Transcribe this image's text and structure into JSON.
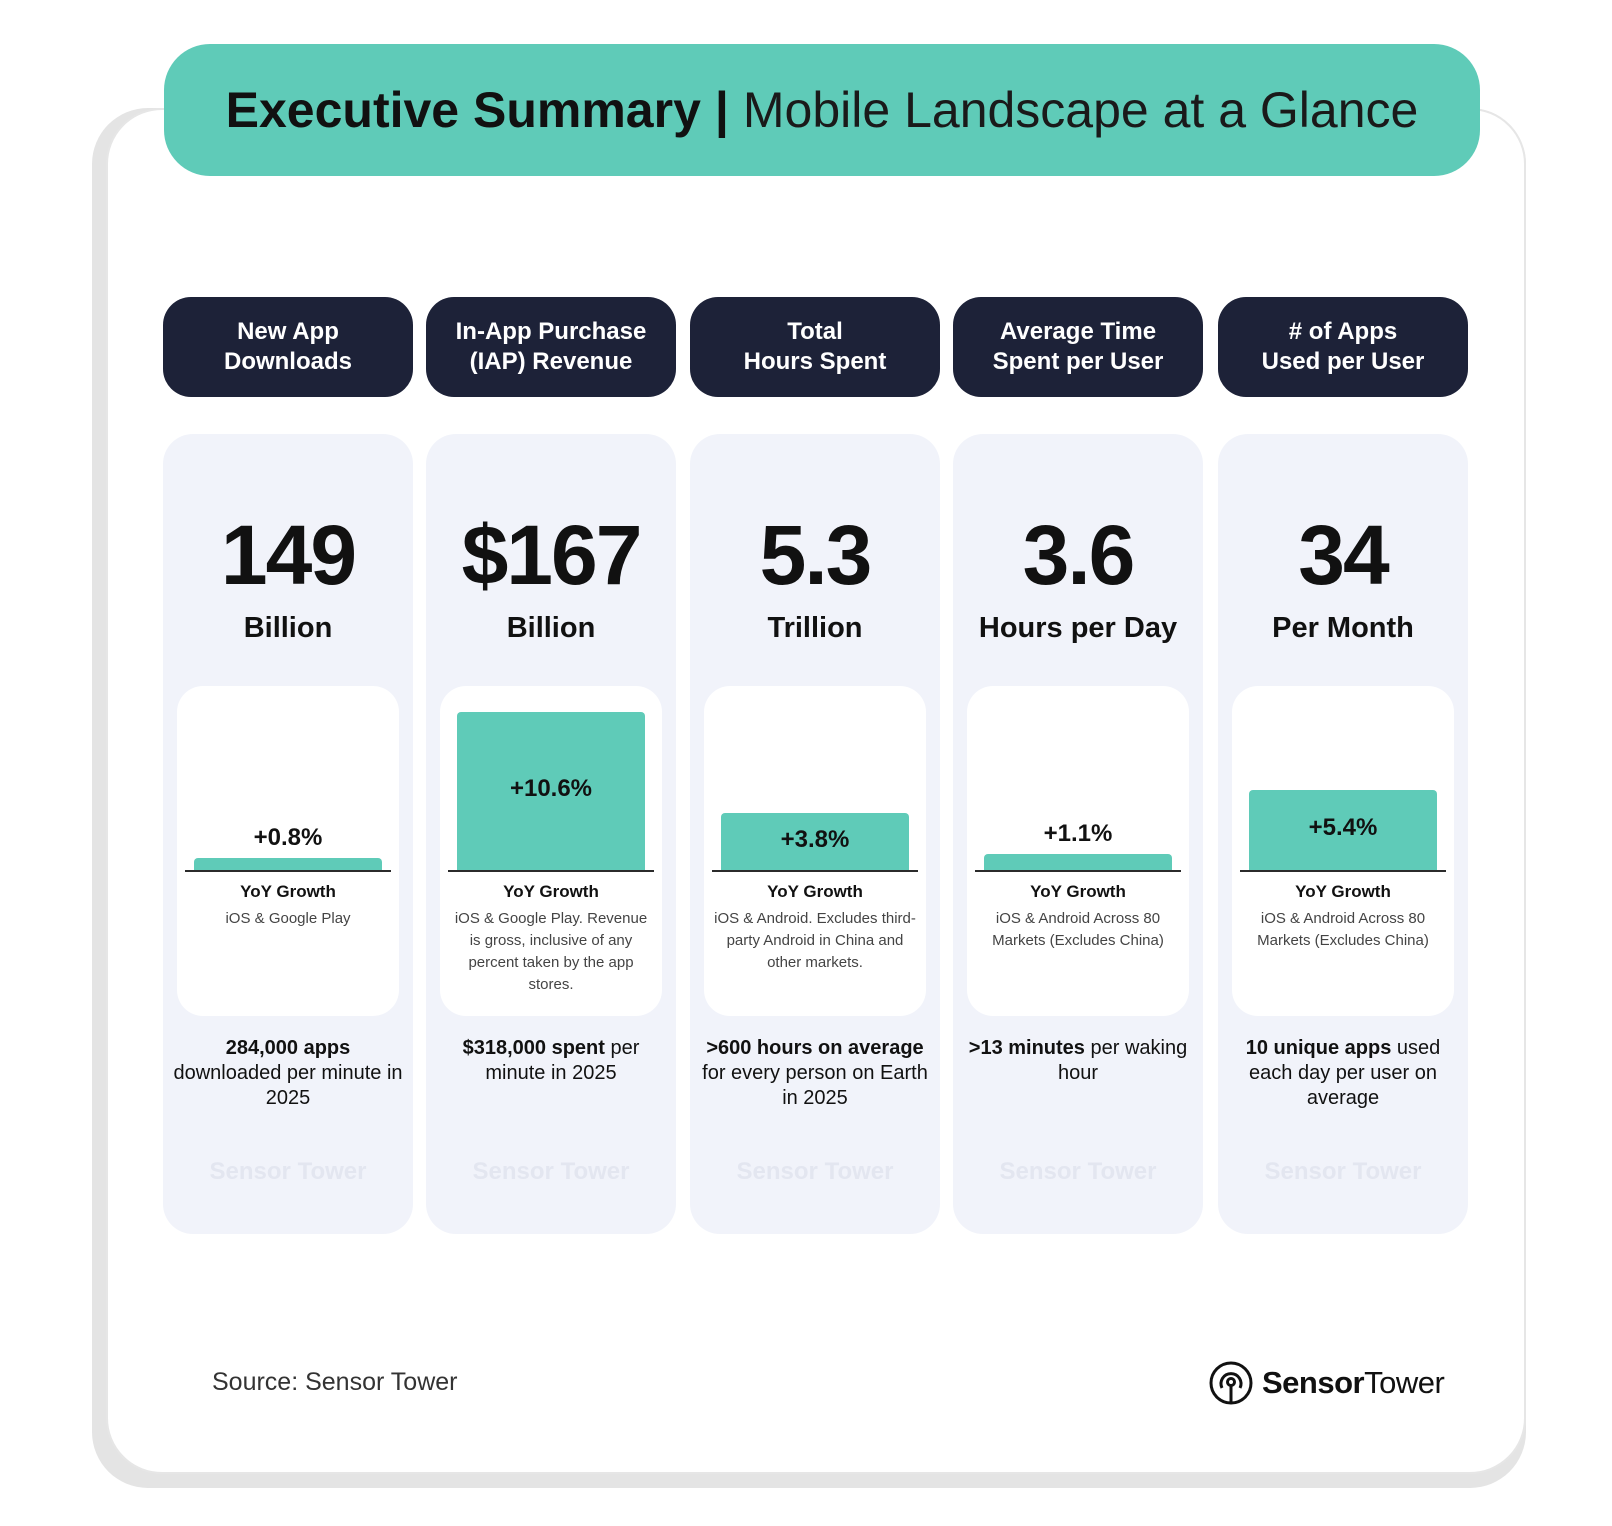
{
  "title": {
    "bold": "Executive Summary",
    "separator": "|",
    "light": "Mobile Landscape at a Glance"
  },
  "chart_data": {
    "type": "bar",
    "title": "Executive Summary | Mobile Landscape at a Glance",
    "xlabel": "",
    "ylabel": "YoY Growth",
    "categories": [
      "New App Downloads",
      "In-App Purchase (IAP) Revenue",
      "Total Hours Spent",
      "Average Time Spent per User",
      "# of Apps Used per User"
    ],
    "values": [
      0.8,
      10.6,
      3.8,
      1.1,
      5.4
    ],
    "ylim": [
      0,
      10.6
    ],
    "series": [
      {
        "name": "YoY Growth",
        "values": [
          0.8,
          10.6,
          3.8,
          1.1,
          5.4
        ]
      }
    ]
  },
  "metrics": [
    {
      "header": "New App\nDownloads",
      "value": "149",
      "unit": "Billion",
      "growth_label": "+0.8%",
      "growth": 0.8,
      "yoy_label": "YoY Growth",
      "note": "iOS & Google Play",
      "footnote_bold": "284,000 apps",
      "footnote_rest": "downloaded per minute in 2025",
      "watermark": "Sensor Tower"
    },
    {
      "header": "In-App Purchase\n(IAP) Revenue",
      "value": "$167",
      "unit": "Billion",
      "growth_label": "+10.6%",
      "growth": 10.6,
      "yoy_label": "YoY Growth",
      "note": "iOS & Google Play. Revenue is gross, inclusive of any percent taken by the app stores.",
      "footnote_bold": "$318,000 spent",
      "footnote_rest": "per minute in 2025",
      "watermark": "Sensor Tower"
    },
    {
      "header": "Total\nHours Spent",
      "value": "5.3",
      "unit": "Trillion",
      "growth_label": "+3.8%",
      "growth": 3.8,
      "yoy_label": "YoY Growth",
      "note": "iOS & Android. Excludes third-party Android in China and other markets.",
      "footnote_bold": ">600 hours on average",
      "footnote_rest": "for every person on Earth in 2025",
      "watermark": "Sensor Tower"
    },
    {
      "header": "Average Time\nSpent per User",
      "value": "3.6",
      "unit": "Hours per Day",
      "growth_label": "+1.1%",
      "growth": 1.1,
      "yoy_label": "YoY Growth",
      "note": "iOS & Android Across 80 Markets (Excludes China)",
      "footnote_bold": ">13 minutes",
      "footnote_rest": "per waking hour",
      "watermark": "Sensor Tower"
    },
    {
      "header": "# of Apps\nUsed per User",
      "value": "34",
      "unit": "Per Month",
      "growth_label": "+5.4%",
      "growth": 5.4,
      "yoy_label": "YoY Growth",
      "note": "iOS & Android Across 80 Markets (Excludes China)",
      "footnote_bold": "10 unique apps",
      "footnote_rest": "used each day per user on average",
      "watermark": "Sensor Tower"
    }
  ],
  "source": "Source: Sensor Tower",
  "brand": {
    "bold": "Sensor",
    "regular": "Tower"
  },
  "colors": {
    "accent": "#5fcbb8",
    "header_bg": "#1d2238",
    "column_bg": "#f1f3fa"
  },
  "icons": {
    "brand": "sensor-tower-logo-icon"
  }
}
